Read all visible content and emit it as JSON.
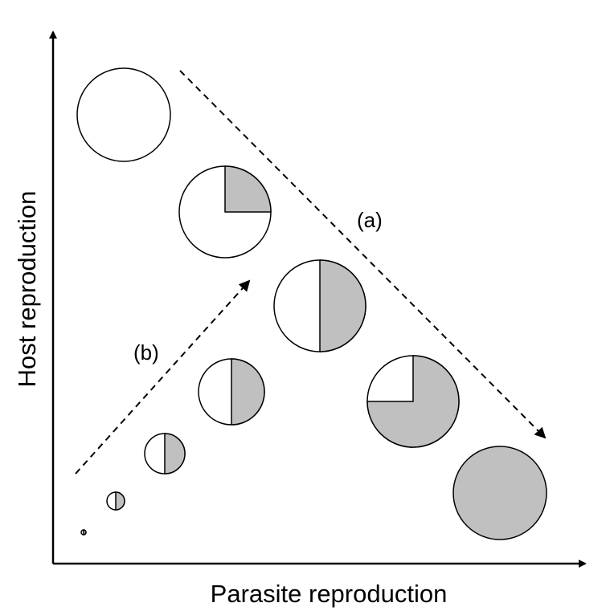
{
  "axes": {
    "x_label": "Parasite reproduction",
    "y_label": "Host reproduction"
  },
  "annotations": {
    "a": "(a)",
    "b": "(b)"
  },
  "colors": {
    "host_fill": "#ffffff",
    "parasite_fill": "#c0c0c0",
    "stroke": "#000000"
  },
  "circles_a": [
    {
      "id": "a0",
      "parasite_fraction": 0
    },
    {
      "id": "a1",
      "parasite_fraction": 0.25
    },
    {
      "id": "a2",
      "parasite_fraction": 0.5
    },
    {
      "id": "a3",
      "parasite_fraction": 0.75
    },
    {
      "id": "a4",
      "parasite_fraction": 1
    }
  ],
  "circles_b": [
    {
      "id": "b0",
      "parasite_fraction": 0.5
    },
    {
      "id": "b1",
      "parasite_fraction": 0.5
    },
    {
      "id": "b2",
      "parasite_fraction": 0.5
    },
    {
      "id": "b3",
      "parasite_fraction": 0.5
    }
  ]
}
